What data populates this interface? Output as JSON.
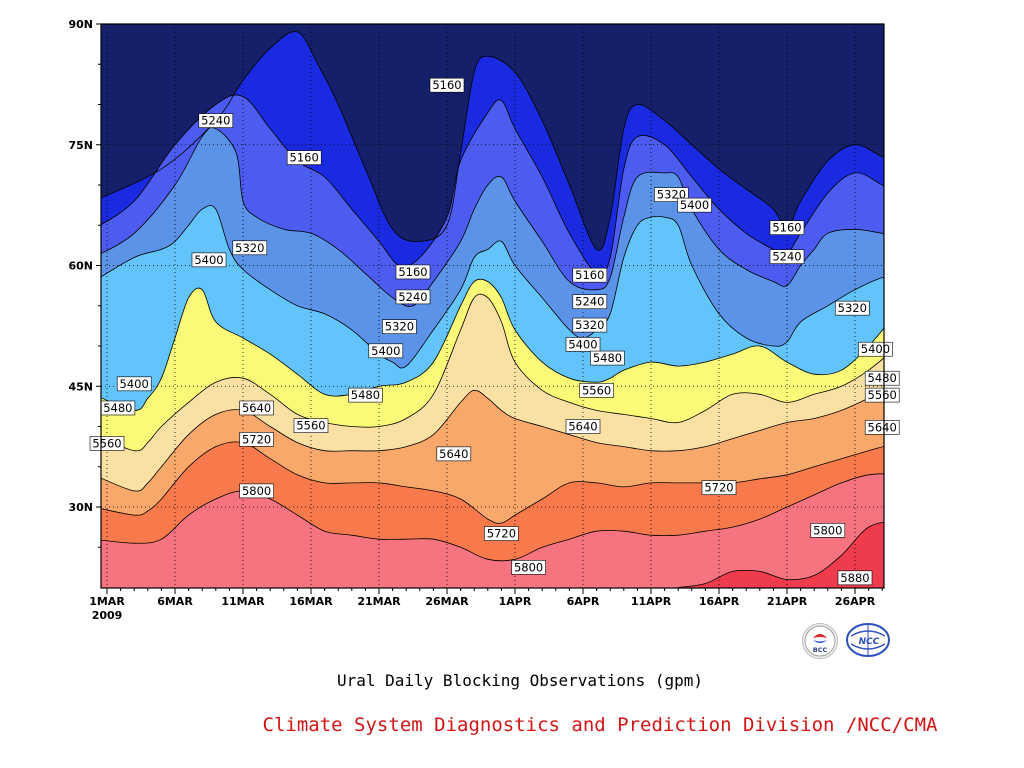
{
  "chart_data": {
    "type": "contour",
    "title": "Ural Daily Blocking Observations (gpm)",
    "y_ticks": [
      "90N",
      "75N",
      "60N",
      "45N",
      "30N"
    ],
    "x_ticks": [
      "1MAR",
      "6MAR",
      "11MAR",
      "16MAR",
      "21MAR",
      "26MAR",
      "1APR",
      "6APR",
      "11APR",
      "16APR",
      "21APR",
      "26APR"
    ],
    "x_year_label": "2009",
    "ylim": [
      20,
      90
    ],
    "xlim": [
      0,
      57
    ],
    "grid": true,
    "levels": [
      5160,
      5240,
      5320,
      5400,
      5480,
      5560,
      5640,
      5720,
      5800,
      5880
    ],
    "band_colors": [
      "#16206a",
      "#1a2ae0",
      "#4d5cf0",
      "#5b93e8",
      "#62c4fb",
      "#fafa78",
      "#fbe0a4",
      "#f8a86a",
      "#f87a4c",
      "#f57480",
      "#ee3c4c"
    ],
    "contour_labels": [
      {
        "value": "5160",
        "x": 25.0,
        "y": 82.4
      },
      {
        "value": "5240",
        "x": 8.0,
        "y": 78.0
      },
      {
        "value": "5160",
        "x": 14.5,
        "y": 73.4
      },
      {
        "value": "5320",
        "x": 41.5,
        "y": 68.8
      },
      {
        "value": "5400",
        "x": 43.2,
        "y": 67.5
      },
      {
        "value": "5160",
        "x": 50.0,
        "y": 64.7
      },
      {
        "value": "5320",
        "x": 10.5,
        "y": 62.2
      },
      {
        "value": "5400",
        "x": 7.5,
        "y": 60.7
      },
      {
        "value": "5240",
        "x": 50.0,
        "y": 61.1
      },
      {
        "value": "5160",
        "x": 22.5,
        "y": 59.2
      },
      {
        "value": "5160",
        "x": 35.5,
        "y": 58.8
      },
      {
        "value": "5240",
        "x": 22.5,
        "y": 56.1
      },
      {
        "value": "5240",
        "x": 35.5,
        "y": 55.5
      },
      {
        "value": "5320",
        "x": 54.8,
        "y": 54.7
      },
      {
        "value": "5320",
        "x": 21.5,
        "y": 52.4
      },
      {
        "value": "5320",
        "x": 35.5,
        "y": 52.6
      },
      {
        "value": "5400",
        "x": 35.0,
        "y": 50.2
      },
      {
        "value": "5400",
        "x": 20.5,
        "y": 49.4
      },
      {
        "value": "5400",
        "x": 56.5,
        "y": 49.6
      },
      {
        "value": "5480",
        "x": 36.8,
        "y": 48.5
      },
      {
        "value": "5400",
        "x": 2.0,
        "y": 45.3
      },
      {
        "value": "5480",
        "x": 57.0,
        "y": 46.0
      },
      {
        "value": "5480",
        "x": 19.0,
        "y": 43.9
      },
      {
        "value": "5560",
        "x": 36.0,
        "y": 44.5
      },
      {
        "value": "5560",
        "x": 57.0,
        "y": 43.9
      },
      {
        "value": "5640",
        "x": 11.0,
        "y": 42.3
      },
      {
        "value": "5480",
        "x": 0.8,
        "y": 42.3
      },
      {
        "value": "5560",
        "x": 15.0,
        "y": 40.1
      },
      {
        "value": "5640",
        "x": 35.0,
        "y": 40.0
      },
      {
        "value": "5640",
        "x": 57.0,
        "y": 39.9
      },
      {
        "value": "5720",
        "x": 11.0,
        "y": 38.4
      },
      {
        "value": "5560",
        "x": 0.0,
        "y": 37.9
      },
      {
        "value": "5640",
        "x": 25.5,
        "y": 36.6
      },
      {
        "value": "5720",
        "x": 45.0,
        "y": 32.4
      },
      {
        "value": "5800",
        "x": 11.0,
        "y": 32.0
      },
      {
        "value": "5800",
        "x": 53.0,
        "y": 27.1
      },
      {
        "value": "5720",
        "x": 29.0,
        "y": 26.7
      },
      {
        "value": "5800",
        "x": 31.0,
        "y": 22.5
      },
      {
        "value": "5880",
        "x": 55.0,
        "y": 21.2
      }
    ]
  },
  "caption": {
    "title": "Ural Daily Blocking Observations (gpm)",
    "credit": "Climate System Diagnostics and Prediction Division /NCC/CMA"
  },
  "logos": [
    {
      "name": "BCC",
      "text": "BCC"
    },
    {
      "name": "NCC",
      "text": "NCC"
    }
  ]
}
